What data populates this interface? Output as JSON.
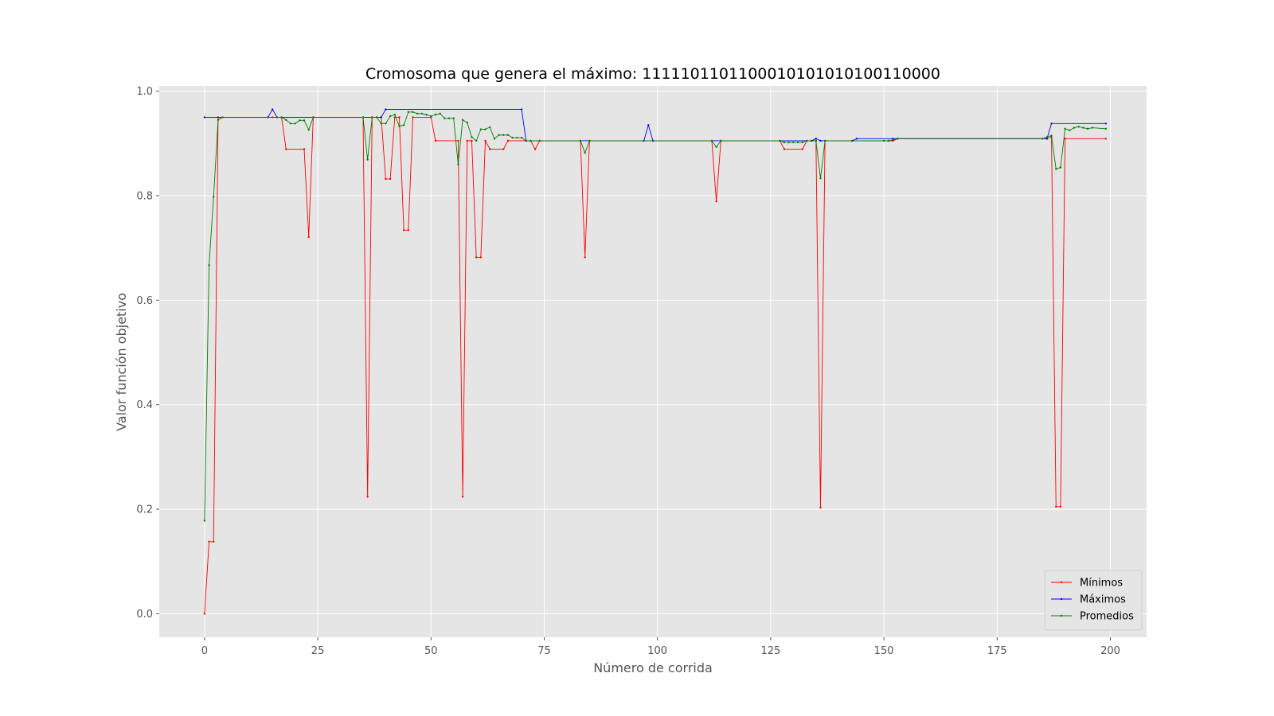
{
  "chart_data": {
    "type": "line",
    "title": "Cromosoma que genera el máximo: 1111101101100010101010100110000",
    "xlabel": "Número de corrida",
    "ylabel": "Valor función objetivo",
    "xlim": [
      -10,
      208
    ],
    "ylim": [
      -0.045,
      1.01
    ],
    "xticks": [
      0,
      25,
      50,
      75,
      100,
      125,
      150,
      175,
      200
    ],
    "yticks": [
      0.0,
      0.2,
      0.4,
      0.6,
      0.8,
      1.0
    ],
    "xtick_labels": [
      "0",
      "25",
      "50",
      "75",
      "100",
      "125",
      "150",
      "175",
      "200"
    ],
    "ytick_labels": [
      "0.0",
      "0.2",
      "0.4",
      "0.6",
      "0.8",
      "1.0"
    ],
    "grid": true,
    "legend_position": "lower-right",
    "background": "#e5e5e5",
    "series": [
      {
        "name": "Mínimos",
        "color": "#ff0000",
        "points": [
          [
            0,
            0.0
          ],
          [
            1,
            0.138
          ],
          [
            2,
            0.138
          ],
          [
            3,
            0.95
          ],
          [
            15,
            0.95
          ],
          [
            16,
            0.95
          ],
          [
            17,
            0.95
          ],
          [
            18,
            0.889
          ],
          [
            22,
            0.889
          ],
          [
            23,
            0.721
          ],
          [
            24,
            0.95
          ],
          [
            35,
            0.95
          ],
          [
            36,
            0.224
          ],
          [
            37,
            0.95
          ],
          [
            39,
            0.95
          ],
          [
            40,
            0.832
          ],
          [
            41,
            0.832
          ],
          [
            42,
            0.95
          ],
          [
            43,
            0.95
          ],
          [
            44,
            0.734
          ],
          [
            45,
            0.734
          ],
          [
            46,
            0.95
          ],
          [
            50,
            0.95
          ],
          [
            51,
            0.905
          ],
          [
            56,
            0.905
          ],
          [
            57,
            0.224
          ],
          [
            58,
            0.905
          ],
          [
            59,
            0.905
          ],
          [
            60,
            0.682
          ],
          [
            61,
            0.682
          ],
          [
            62,
            0.905
          ],
          [
            63,
            0.889
          ],
          [
            66,
            0.889
          ],
          [
            67,
            0.905
          ],
          [
            71,
            0.905
          ],
          [
            72,
            0.905
          ],
          [
            73,
            0.889
          ],
          [
            74,
            0.905
          ],
          [
            83,
            0.905
          ],
          [
            84,
            0.682
          ],
          [
            85,
            0.905
          ],
          [
            112,
            0.905
          ],
          [
            113,
            0.789
          ],
          [
            114,
            0.905
          ],
          [
            127,
            0.905
          ],
          [
            128,
            0.889
          ],
          [
            132,
            0.889
          ],
          [
            133,
            0.905
          ],
          [
            135,
            0.905
          ],
          [
            136,
            0.203
          ],
          [
            137,
            0.905
          ],
          [
            150,
            0.905
          ],
          [
            151,
            0.905
          ],
          [
            152,
            0.905
          ],
          [
            153,
            0.909
          ],
          [
            186,
            0.909
          ],
          [
            187,
            0.912
          ],
          [
            188,
            0.205
          ],
          [
            189,
            0.205
          ],
          [
            190,
            0.909
          ],
          [
            199,
            0.909
          ]
        ]
      },
      {
        "name": "Máximos",
        "color": "#0000ff",
        "points": [
          [
            0,
            0.95
          ],
          [
            14,
            0.95
          ],
          [
            15,
            0.965
          ],
          [
            16,
            0.95
          ],
          [
            38,
            0.95
          ],
          [
            39,
            0.95
          ],
          [
            40,
            0.965
          ],
          [
            70,
            0.965
          ],
          [
            71,
            0.905
          ],
          [
            97,
            0.905
          ],
          [
            98,
            0.935
          ],
          [
            99,
            0.905
          ],
          [
            134,
            0.905
          ],
          [
            135,
            0.909
          ],
          [
            136,
            0.905
          ],
          [
            143,
            0.905
          ],
          [
            144,
            0.909
          ],
          [
            152,
            0.909
          ],
          [
            153,
            0.909
          ],
          [
            186,
            0.909
          ],
          [
            187,
            0.938
          ],
          [
            199,
            0.938
          ]
        ]
      },
      {
        "name": "Promedios",
        "color": "#008000",
        "points": [
          [
            0,
            0.178
          ],
          [
            1,
            0.667
          ],
          [
            2,
            0.798
          ],
          [
            3,
            0.945
          ],
          [
            4,
            0.95
          ],
          [
            16,
            0.95
          ],
          [
            17,
            0.95
          ],
          [
            18,
            0.945
          ],
          [
            19,
            0.938
          ],
          [
            20,
            0.938
          ],
          [
            21,
            0.944
          ],
          [
            22,
            0.944
          ],
          [
            23,
            0.926
          ],
          [
            24,
            0.95
          ],
          [
            35,
            0.95
          ],
          [
            36,
            0.869
          ],
          [
            37,
            0.95
          ],
          [
            38,
            0.95
          ],
          [
            39,
            0.938
          ],
          [
            40,
            0.938
          ],
          [
            41,
            0.952
          ],
          [
            42,
            0.955
          ],
          [
            43,
            0.933
          ],
          [
            44,
            0.935
          ],
          [
            45,
            0.96
          ],
          [
            46,
            0.96
          ],
          [
            47,
            0.957
          ],
          [
            48,
            0.957
          ],
          [
            49,
            0.955
          ],
          [
            50,
            0.952
          ],
          [
            51,
            0.955
          ],
          [
            52,
            0.957
          ],
          [
            53,
            0.948
          ],
          [
            54,
            0.948
          ],
          [
            55,
            0.948
          ],
          [
            56,
            0.86
          ],
          [
            57,
            0.945
          ],
          [
            58,
            0.94
          ],
          [
            59,
            0.912
          ],
          [
            60,
            0.905
          ],
          [
            61,
            0.927
          ],
          [
            62,
            0.927
          ],
          [
            63,
            0.931
          ],
          [
            64,
            0.909
          ],
          [
            65,
            0.916
          ],
          [
            66,
            0.916
          ],
          [
            67,
            0.916
          ],
          [
            68,
            0.911
          ],
          [
            69,
            0.911
          ],
          [
            70,
            0.911
          ],
          [
            71,
            0.905
          ],
          [
            72,
            0.905
          ],
          [
            83,
            0.905
          ],
          [
            84,
            0.882
          ],
          [
            85,
            0.905
          ],
          [
            112,
            0.905
          ],
          [
            113,
            0.893
          ],
          [
            114,
            0.905
          ],
          [
            127,
            0.905
          ],
          [
            128,
            0.902
          ],
          [
            129,
            0.902
          ],
          [
            130,
            0.902
          ],
          [
            131,
            0.902
          ],
          [
            132,
            0.902
          ],
          [
            133,
            0.905
          ],
          [
            135,
            0.905
          ],
          [
            136,
            0.833
          ],
          [
            137,
            0.905
          ],
          [
            150,
            0.905
          ],
          [
            151,
            0.905
          ],
          [
            152,
            0.907
          ],
          [
            153,
            0.909
          ],
          [
            185,
            0.909
          ],
          [
            186,
            0.912
          ],
          [
            187,
            0.915
          ],
          [
            188,
            0.851
          ],
          [
            189,
            0.854
          ],
          [
            190,
            0.928
          ],
          [
            191,
            0.925
          ],
          [
            192,
            0.93
          ],
          [
            193,
            0.932
          ],
          [
            194,
            0.93
          ],
          [
            195,
            0.928
          ],
          [
            196,
            0.93
          ],
          [
            199,
            0.928
          ]
        ]
      }
    ]
  }
}
